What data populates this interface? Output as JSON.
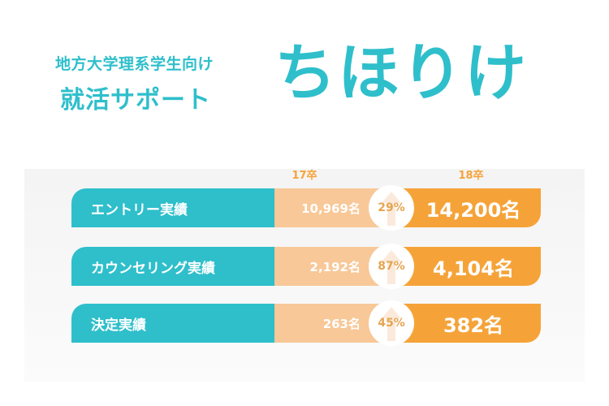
{
  "colors": {
    "teal": "#2ebfcb",
    "light_orange": "#f8c898",
    "orange": "#f5a339",
    "growth_text": "#e6a450",
    "arrow": "#fbeadb"
  },
  "header": {
    "tagline": "地方大学理系学生向け",
    "subtitle": "就活サポート",
    "brand": "ちほりけ"
  },
  "columns": {
    "prev_year": "17卒",
    "curr_year": "18卒"
  },
  "rows": [
    {
      "label": "エントリー実績",
      "prev": "10,969名",
      "growth": "29%",
      "curr": "14,200名"
    },
    {
      "label": "カウンセリング実績",
      "prev": "2,192名",
      "growth": "87%",
      "curr": "4,104名"
    },
    {
      "label": "決定実績",
      "prev": "263名",
      "growth": "45%",
      "curr": "382名"
    }
  ]
}
